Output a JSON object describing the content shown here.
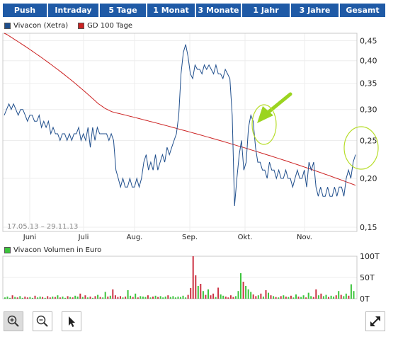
{
  "tabs": [
    "Push",
    "Intraday",
    "5 Tage",
    "1 Monat",
    "3 Monate",
    "1 Jahr",
    "3 Jahre",
    "Gesamt"
  ],
  "legend": {
    "price": "Vivacon (Xetra)",
    "gd": "GD 100 Tage",
    "volume": "Vivacon Volumen in Euro"
  },
  "date_range": "17.05.13 – 29.11.13",
  "colors": {
    "tab_bg": "#1f5aa6",
    "price": "#1f4e8c",
    "gd": "#cc2222",
    "volume_up": "#3cc43c",
    "volume_down": "#cc3344",
    "highlight": "#b7dd2a"
  },
  "tools": [
    "zoom-in-icon",
    "zoom-out-icon",
    "pointer-icon",
    "fullscreen-icon"
  ],
  "chart_data": [
    {
      "type": "line",
      "x_tick_labels": [
        "Juni",
        "Juli",
        "Aug.",
        "Sep.",
        "Okt.",
        "Nov."
      ],
      "y_tick_labels": [
        "0,45",
        "0,40",
        "0,35",
        "0,30",
        "0,25",
        "0,20",
        "0,15"
      ],
      "y_ticks": [
        0.45,
        0.4,
        0.35,
        0.3,
        0.25,
        0.2,
        0.15
      ],
      "ylim": [
        0.15,
        0.45
      ],
      "series": [
        {
          "name": "Vivacon (Xetra)",
          "values": [
            0.29,
            0.3,
            0.31,
            0.3,
            0.31,
            0.3,
            0.29,
            0.3,
            0.3,
            0.29,
            0.28,
            0.29,
            0.29,
            0.28,
            0.28,
            0.29,
            0.27,
            0.28,
            0.27,
            0.28,
            0.26,
            0.27,
            0.26,
            0.26,
            0.25,
            0.26,
            0.26,
            0.25,
            0.26,
            0.25,
            0.26,
            0.26,
            0.27,
            0.25,
            0.26,
            0.25,
            0.27,
            0.24,
            0.27,
            0.25,
            0.27,
            0.26,
            0.26,
            0.26,
            0.26,
            0.25,
            0.26,
            0.25,
            0.21,
            0.2,
            0.19,
            0.2,
            0.19,
            0.19,
            0.2,
            0.19,
            0.19,
            0.2,
            0.19,
            0.2,
            0.22,
            0.23,
            0.21,
            0.22,
            0.21,
            0.23,
            0.21,
            0.22,
            0.23,
            0.22,
            0.24,
            0.23,
            0.24,
            0.25,
            0.26,
            0.29,
            0.37,
            0.42,
            0.44,
            0.41,
            0.37,
            0.36,
            0.39,
            0.38,
            0.38,
            0.37,
            0.39,
            0.38,
            0.39,
            0.38,
            0.37,
            0.39,
            0.37,
            0.37,
            0.36,
            0.38,
            0.37,
            0.36,
            0.29,
            0.17,
            0.2,
            0.23,
            0.25,
            0.21,
            0.22,
            0.27,
            0.29,
            0.28,
            0.24,
            0.22,
            0.22,
            0.21,
            0.21,
            0.2,
            0.22,
            0.21,
            0.21,
            0.2,
            0.21,
            0.2,
            0.2,
            0.21,
            0.2,
            0.2,
            0.19,
            0.2,
            0.21,
            0.2,
            0.2,
            0.21,
            0.19,
            0.22,
            0.21,
            0.22,
            0.19,
            0.18,
            0.19,
            0.18,
            0.18,
            0.19,
            0.18,
            0.18,
            0.19,
            0.18,
            0.19,
            0.19,
            0.18,
            0.2,
            0.21,
            0.2,
            0.22,
            0.23
          ]
        },
        {
          "name": "GD 100 Tage",
          "values": [
            0.47,
            0.467,
            0.463,
            0.459,
            0.455,
            0.451,
            0.447,
            0.443,
            0.439,
            0.435,
            0.431,
            0.427,
            0.423,
            0.419,
            0.415,
            0.411,
            0.407,
            0.403,
            0.399,
            0.395,
            0.391,
            0.387,
            0.383,
            0.379,
            0.375,
            0.371,
            0.367,
            0.363,
            0.359,
            0.355,
            0.351,
            0.347,
            0.343,
            0.339,
            0.335,
            0.331,
            0.327,
            0.323,
            0.319,
            0.315,
            0.311,
            0.308,
            0.305,
            0.302,
            0.3,
            0.298,
            0.296,
            0.295,
            0.294,
            0.293,
            0.292,
            0.291,
            0.29,
            0.289,
            0.288,
            0.287,
            0.286,
            0.285,
            0.284,
            0.283,
            0.282,
            0.281,
            0.28,
            0.279,
            0.278,
            0.277,
            0.276,
            0.275,
            0.274,
            0.273,
            0.272,
            0.271,
            0.27,
            0.269,
            0.268,
            0.267,
            0.266,
            0.265,
            0.264,
            0.263,
            0.262,
            0.261,
            0.26,
            0.259,
            0.258,
            0.257,
            0.256,
            0.255,
            0.254,
            0.253,
            0.252,
            0.251,
            0.25,
            0.249,
            0.248,
            0.247,
            0.246,
            0.245,
            0.244,
            0.243,
            0.242,
            0.241,
            0.24,
            0.239,
            0.238,
            0.237,
            0.236,
            0.235,
            0.234,
            0.233,
            0.232,
            0.231,
            0.23,
            0.229,
            0.228,
            0.227,
            0.226,
            0.225,
            0.224,
            0.223,
            0.222,
            0.221,
            0.22,
            0.219,
            0.218,
            0.217,
            0.216,
            0.215,
            0.214,
            0.213,
            0.212,
            0.211,
            0.21,
            0.209,
            0.208,
            0.207,
            0.206,
            0.205,
            0.204,
            0.203,
            0.202,
            0.201,
            0.2,
            0.199,
            0.198,
            0.197,
            0.196,
            0.195,
            0.194,
            0.193,
            0.192
          ]
        }
      ]
    },
    {
      "type": "bar",
      "y_tick_labels": [
        "100T",
        "50T",
        "0T"
      ],
      "ylim": [
        0,
        100
      ],
      "series": [
        {
          "name": "Vivacon Volumen in Euro",
          "values": [
            3,
            5,
            2,
            8,
            4,
            3,
            6,
            2,
            5,
            3,
            4,
            2,
            7,
            3,
            5,
            4,
            2,
            6,
            3,
            5,
            4,
            8,
            3,
            5,
            2,
            6,
            4,
            3,
            7,
            5,
            12,
            4,
            8,
            3,
            5,
            2,
            6,
            9,
            4,
            3,
            16,
            5,
            7,
            22,
            8,
            4,
            6,
            3,
            5,
            20,
            7,
            4,
            12,
            3,
            6,
            5,
            4,
            8,
            3,
            5,
            7,
            4,
            6,
            3,
            5,
            8,
            4,
            6,
            3,
            5,
            4,
            7,
            3,
            9,
            25,
            100,
            55,
            30,
            35,
            18,
            9,
            22,
            8,
            12,
            4,
            26,
            10,
            7,
            5,
            3,
            8,
            4,
            6,
            18,
            60,
            40,
            30,
            22,
            16,
            10,
            6,
            8,
            12,
            5,
            20,
            14,
            8,
            6,
            4,
            3,
            6,
            8,
            5,
            4,
            7,
            3,
            10,
            5,
            4,
            8,
            3,
            14,
            6,
            4,
            22,
            8,
            12,
            6,
            9,
            4,
            7,
            5,
            8,
            18,
            9,
            6,
            12,
            7,
            34,
            18
          ]
        }
      ]
    }
  ]
}
